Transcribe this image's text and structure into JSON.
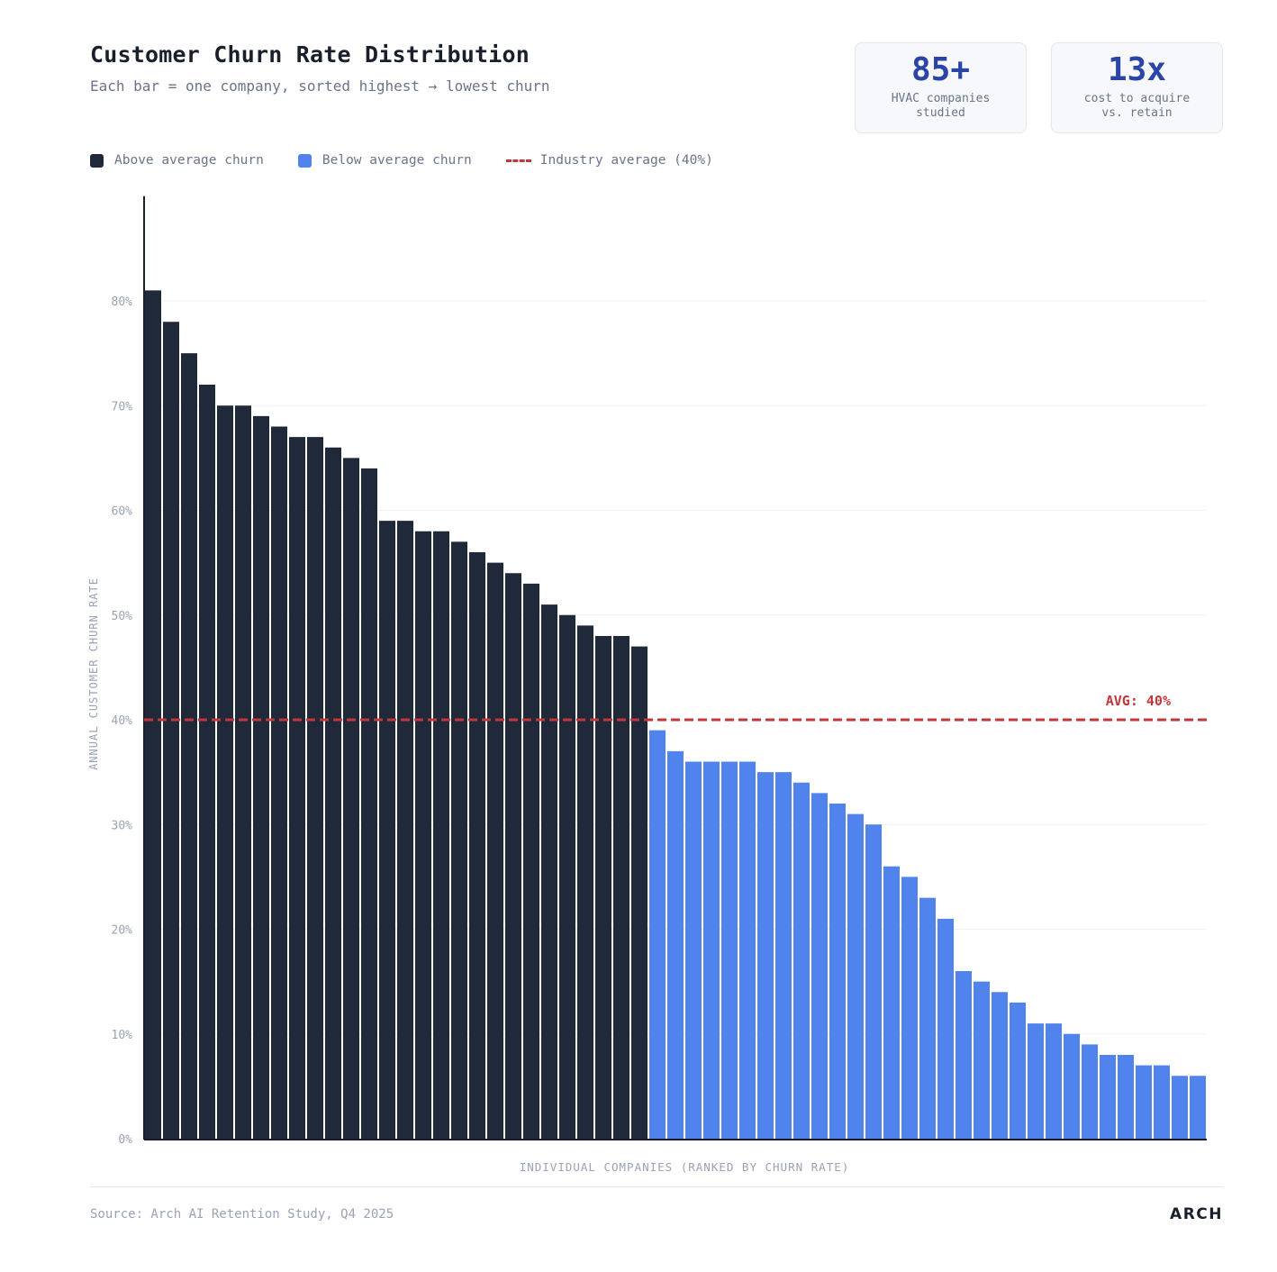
{
  "header": {
    "title": "Customer Churn Rate Distribution",
    "subtitle": "Each bar = one company, sorted highest → lowest churn"
  },
  "stats": [
    {
      "value": "85+",
      "label": "HVAC companies\nstudied"
    },
    {
      "value": "13x",
      "label": "cost to acquire\nvs. retain"
    }
  ],
  "legend": [
    {
      "label": "Above average churn",
      "color": "#1f293a"
    },
    {
      "label": "Below average churn",
      "color": "#5183ec"
    },
    {
      "label": "Industry average (40%)",
      "color": "#c0383a"
    }
  ],
  "chart_data": {
    "type": "bar",
    "title": "Customer Churn Rate Distribution",
    "xlabel": "INDIVIDUAL COMPANIES (RANKED BY CHURN RATE)",
    "ylabel": "ANNUAL CUSTOMER CHURN RATE",
    "ylim": [
      0,
      90
    ],
    "yticks": [
      0,
      10,
      20,
      30,
      40,
      50,
      60,
      70,
      80
    ],
    "ytick_labels": [
      "0%",
      "10%",
      "20%",
      "30%",
      "40%",
      "50%",
      "60%",
      "70%",
      "80%"
    ],
    "grid": true,
    "values": [
      81,
      78,
      75,
      72,
      70,
      70,
      69,
      68,
      67,
      67,
      66,
      65,
      64,
      59,
      59,
      58,
      58,
      57,
      56,
      55,
      54,
      53,
      51,
      50,
      49,
      48,
      48,
      47,
      39,
      37,
      36,
      36,
      36,
      36,
      35,
      35,
      34,
      33,
      32,
      31,
      30,
      26,
      25,
      23,
      21,
      16,
      15,
      14,
      13,
      11,
      11,
      10,
      9,
      8,
      8,
      7,
      7,
      6,
      6
    ],
    "average": 40,
    "average_label": "AVG: 40%",
    "colors": {
      "above": "#1f293a",
      "below": "#5183ec",
      "average": "#c0383a",
      "grid": "#eef0f4",
      "tick": "#9aa2b3"
    }
  },
  "footer": {
    "source": "Source: Arch AI Retention Study, Q4 2025",
    "brand": "ARCH"
  }
}
